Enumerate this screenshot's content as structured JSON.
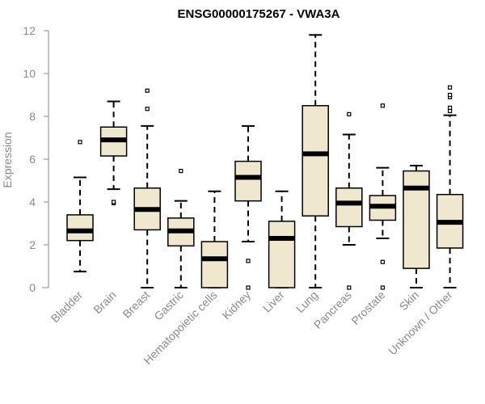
{
  "chart_data": {
    "type": "box",
    "title": "ENSG00000175267 - VWA3A",
    "xlabel": "",
    "ylabel": "Expression",
    "ylim": [
      0,
      12
    ],
    "yticks": [
      0,
      2,
      4,
      6,
      8,
      10,
      12
    ],
    "box_fill": "#efe8cf",
    "series": [
      {
        "category": "Bladder",
        "whisker_low": 0.75,
        "q1": 2.2,
        "median": 2.65,
        "q3": 3.4,
        "whisker_high": 5.15,
        "outliers": [
          6.8
        ]
      },
      {
        "category": "Brain",
        "whisker_low": 4.6,
        "q1": 6.15,
        "median": 6.9,
        "q3": 7.5,
        "whisker_high": 8.7,
        "outliers": [
          3.95,
          4.0
        ]
      },
      {
        "category": "Breast",
        "whisker_low": 0.0,
        "q1": 2.7,
        "median": 3.65,
        "q3": 4.65,
        "whisker_high": 7.55,
        "outliers": [
          8.35,
          9.2
        ]
      },
      {
        "category": "Gastric",
        "whisker_low": 0.0,
        "q1": 1.95,
        "median": 2.65,
        "q3": 3.25,
        "whisker_high": 4.05,
        "outliers": [
          5.45
        ]
      },
      {
        "category": "Hematopoietic cells",
        "whisker_low": 0.0,
        "q1": 0.0,
        "median": 1.35,
        "q3": 2.15,
        "whisker_high": 4.5,
        "outliers": []
      },
      {
        "category": "Kidney",
        "whisker_low": 2.15,
        "q1": 4.05,
        "median": 5.15,
        "q3": 5.9,
        "whisker_high": 7.55,
        "outliers": [
          1.25,
          0.0
        ]
      },
      {
        "category": "Liver",
        "whisker_low": 0.0,
        "q1": 0.0,
        "median": 2.3,
        "q3": 3.1,
        "whisker_high": 4.5,
        "outliers": []
      },
      {
        "category": "Lung",
        "whisker_low": 0.0,
        "q1": 3.35,
        "median": 6.25,
        "q3": 8.5,
        "whisker_high": 11.8,
        "outliers": []
      },
      {
        "category": "Pancreas",
        "whisker_low": 2.0,
        "q1": 2.85,
        "median": 3.95,
        "q3": 4.65,
        "whisker_high": 7.15,
        "outliers": [
          8.1,
          0.0
        ]
      },
      {
        "category": "Prostate",
        "whisker_low": 2.3,
        "q1": 3.15,
        "median": 3.8,
        "q3": 4.3,
        "whisker_high": 5.6,
        "outliers": [
          8.5,
          1.2,
          0.0
        ]
      },
      {
        "category": "Skin",
        "whisker_low": 0.0,
        "q1": 0.9,
        "median": 4.65,
        "q3": 5.45,
        "whisker_high": 5.7,
        "outliers": []
      },
      {
        "category": "Unknown / Other",
        "whisker_low": 0.0,
        "q1": 1.85,
        "median": 3.05,
        "q3": 4.35,
        "whisker_high": 8.05,
        "outliers": [
          8.25,
          8.4,
          8.9,
          9.0,
          9.35
        ]
      }
    ]
  }
}
